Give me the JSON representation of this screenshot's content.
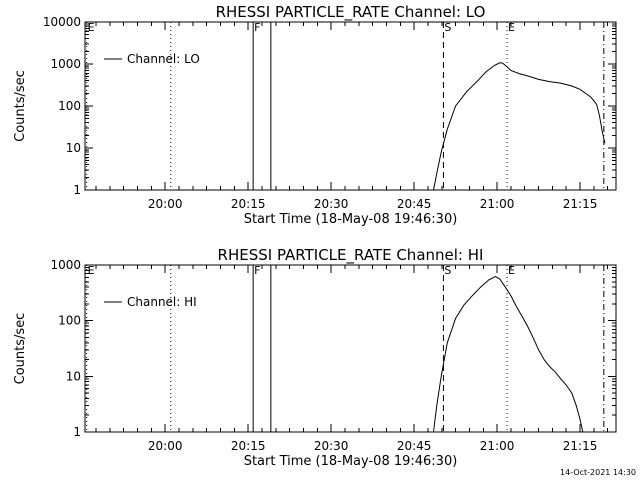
{
  "footer": {
    "timestamp": "14-Oct-2021 14:30"
  },
  "chart_data": [
    {
      "type": "line",
      "title": "RHESSI PARTICLE_RATE Channel: LO",
      "xlabel": "Start Time (18-May-08 19:46:30)",
      "ylabel": "Counts/sec",
      "y_scale": "log",
      "xlim_minutes_since_start": [
        0,
        96
      ],
      "ylim": [
        1,
        10000
      ],
      "x_ticks": [
        {
          "t": 14.5,
          "label": "20:00"
        },
        {
          "t": 29.5,
          "label": "20:15"
        },
        {
          "t": 44.5,
          "label": "20:30"
        },
        {
          "t": 59.5,
          "label": "20:45"
        },
        {
          "t": 74.5,
          "label": "21:00"
        },
        {
          "t": 89.5,
          "label": "21:15"
        }
      ],
      "y_ticks": [
        {
          "v": 1,
          "label": "1"
        },
        {
          "v": 10,
          "label": "10"
        },
        {
          "v": 100,
          "label": "100"
        },
        {
          "v": 1000,
          "label": "1000"
        },
        {
          "v": 10000,
          "label": "10000"
        }
      ],
      "legend": {
        "placement": "top-left",
        "entries": [
          "Channel: LO"
        ]
      },
      "markers": [
        {
          "t": 0.3,
          "label": "E",
          "style": "dotted"
        },
        {
          "t": 15.5,
          "label": "",
          "style": "dotted"
        },
        {
          "t": 30.4,
          "label": "F",
          "style": "solid"
        },
        {
          "t": 33.6,
          "label": "",
          "style": "solid"
        },
        {
          "t": 64.8,
          "label": "S",
          "style": "dashed"
        },
        {
          "t": 76.3,
          "label": "E",
          "style": "dotted"
        },
        {
          "t": 93.8,
          "label": "",
          "style": "dashdot"
        }
      ],
      "series": [
        {
          "name": "Channel: LO",
          "x": [
            63,
            63.6,
            64.4,
            65.5,
            67,
            69,
            71,
            72.5,
            74,
            75,
            75.5,
            76.3,
            77,
            78.5,
            80,
            82,
            84,
            86,
            88,
            89.5,
            90.5,
            91.5,
            92.5,
            93,
            93.5,
            94
          ],
          "y": [
            1,
            2.5,
            8,
            28,
            100,
            220,
            400,
            650,
            920,
            1070,
            1050,
            860,
            700,
            590,
            520,
            430,
            380,
            350,
            300,
            250,
            200,
            160,
            110,
            60,
            25,
            13
          ]
        }
      ]
    },
    {
      "type": "line",
      "title": "RHESSI PARTICLE_RATE Channel: HI",
      "xlabel": "Start Time (18-May-08 19:46:30)",
      "ylabel": "Counts/sec",
      "y_scale": "log",
      "xlim_minutes_since_start": [
        0,
        96
      ],
      "ylim": [
        1,
        1000
      ],
      "x_ticks": [
        {
          "t": 14.5,
          "label": "20:00"
        },
        {
          "t": 29.5,
          "label": "20:15"
        },
        {
          "t": 44.5,
          "label": "20:30"
        },
        {
          "t": 59.5,
          "label": "20:45"
        },
        {
          "t": 74.5,
          "label": "21:00"
        },
        {
          "t": 89.5,
          "label": "21:15"
        }
      ],
      "y_ticks": [
        {
          "v": 1,
          "label": "1"
        },
        {
          "v": 10,
          "label": "10"
        },
        {
          "v": 100,
          "label": "100"
        },
        {
          "v": 1000,
          "label": "1000"
        }
      ],
      "legend": {
        "placement": "top-left",
        "entries": [
          "Channel: HI"
        ]
      },
      "markers": [
        {
          "t": 0.3,
          "label": "E",
          "style": "dotted"
        },
        {
          "t": 15.5,
          "label": "",
          "style": "dotted"
        },
        {
          "t": 30.4,
          "label": "F",
          "style": "solid"
        },
        {
          "t": 33.6,
          "label": "",
          "style": "solid"
        },
        {
          "t": 64.8,
          "label": "S",
          "style": "dashed"
        },
        {
          "t": 76.3,
          "label": "E",
          "style": "dotted"
        },
        {
          "t": 93.8,
          "label": "",
          "style": "dashdot"
        }
      ],
      "series": [
        {
          "name": "Channel: HI",
          "x": [
            63,
            63.6,
            64.4,
            65.5,
            67,
            68.5,
            70,
            71.5,
            73,
            74.2,
            75,
            76,
            77,
            78,
            79,
            80,
            81,
            82,
            83,
            84,
            85,
            86,
            87,
            88,
            88.8,
            89.5,
            90
          ],
          "y": [
            1,
            3,
            10,
            40,
            110,
            190,
            280,
            400,
            540,
            620,
            560,
            400,
            280,
            180,
            120,
            80,
            50,
            30,
            20,
            15,
            12,
            9,
            7,
            5,
            3,
            1.7,
            1
          ]
        }
      ]
    }
  ]
}
